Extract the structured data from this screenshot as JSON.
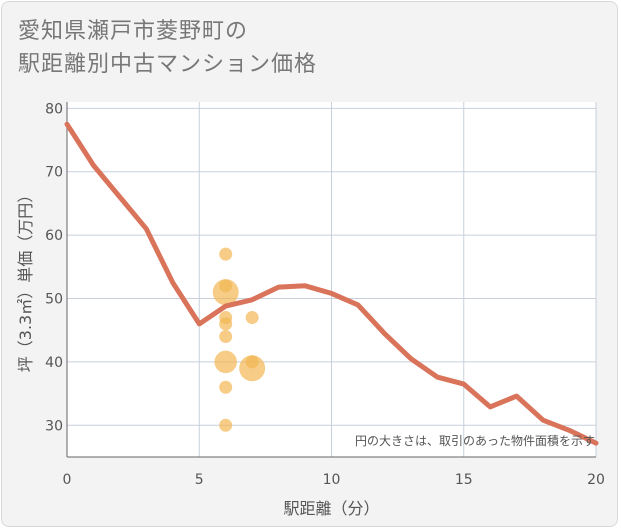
{
  "chart_data": {
    "type": "scatter",
    "title_lines": [
      "愛知県瀬戸市菱野町の",
      "駅距離別中古マンション価格"
    ],
    "xlabel": "駅距離（分）",
    "ylabel": "坪（3.3㎡）単価（万円）",
    "xlim": [
      0,
      20
    ],
    "ylim": [
      25,
      81
    ],
    "x_ticks": [
      0,
      5,
      10,
      15,
      20
    ],
    "y_ticks": [
      30,
      40,
      50,
      60,
      70,
      80
    ],
    "grid": true,
    "note": "円の大きさは、取引のあった物件面積を示す",
    "colors": {
      "line": "#d9735a",
      "bubble": "#f2b652",
      "grid": "#c8d0dc",
      "plot_bg": "#ffffff",
      "axis": "#666666"
    },
    "series": [
      {
        "name": "trend",
        "kind": "line",
        "x": [
          0,
          1,
          2,
          3,
          4,
          5,
          6,
          7,
          8,
          9,
          10,
          11,
          12,
          13,
          14,
          15,
          16,
          17,
          18,
          19,
          20
        ],
        "y": [
          77.5,
          71,
          66,
          61,
          52.5,
          46,
          48.8,
          49.8,
          51.8,
          52,
          50.8,
          49,
          44.5,
          40.5,
          37.6,
          36.5,
          32.9,
          34.6,
          30.8,
          29.2,
          27.2
        ]
      },
      {
        "name": "transactions",
        "kind": "bubble",
        "points": [
          {
            "x": 6,
            "y": 57,
            "size": 1
          },
          {
            "x": 6,
            "y": 52,
            "size": 1
          },
          {
            "x": 6,
            "y": 51,
            "size": 4
          },
          {
            "x": 6,
            "y": 47,
            "size": 1
          },
          {
            "x": 6,
            "y": 46,
            "size": 1
          },
          {
            "x": 6,
            "y": 44,
            "size": 1
          },
          {
            "x": 6,
            "y": 40,
            "size": 3
          },
          {
            "x": 6,
            "y": 36,
            "size": 1
          },
          {
            "x": 6,
            "y": 30,
            "size": 1
          },
          {
            "x": 7,
            "y": 47,
            "size": 1
          },
          {
            "x": 7,
            "y": 40,
            "size": 1
          },
          {
            "x": 7,
            "y": 39,
            "size": 4
          }
        ]
      }
    ]
  }
}
